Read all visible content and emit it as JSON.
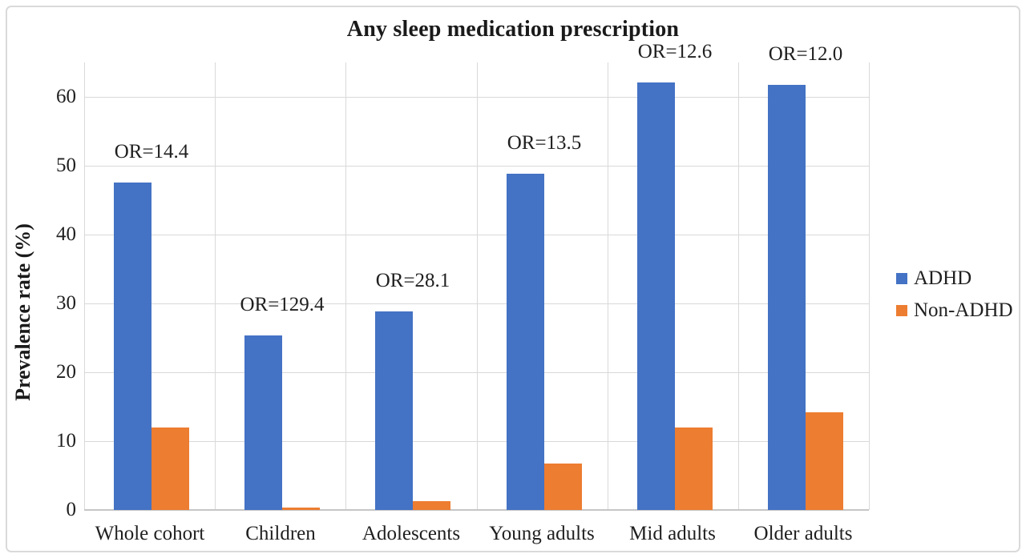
{
  "figure": {
    "background": "#ffffff",
    "border_color": "#dadada"
  },
  "chart_data": {
    "type": "bar",
    "title": "Any sleep medication prescription",
    "ylabel": "Prevalence rate (%)",
    "xlabel": "",
    "ylim": [
      0,
      65
    ],
    "yticks": [
      0,
      10,
      20,
      30,
      40,
      50,
      60
    ],
    "grid": true,
    "legend_position": "right",
    "categories": [
      "Whole cohort",
      "Children",
      "Adolescents",
      "Young adults",
      "Mid adults",
      "Older adults"
    ],
    "series": [
      {
        "name": "ADHD",
        "color": "#4472C4",
        "values": [
          47.5,
          25.4,
          28.8,
          48.8,
          62.1,
          61.8
        ]
      },
      {
        "name": "Non-ADHD",
        "color": "#ED7D31",
        "values": [
          12.0,
          0.3,
          1.3,
          6.8,
          12.0,
          14.2
        ]
      }
    ],
    "annotations": [
      {
        "category": "Whole cohort",
        "label": "OR=14.4"
      },
      {
        "category": "Children",
        "label": "OR=129.4"
      },
      {
        "category": "Adolescents",
        "label": "OR=28.1"
      },
      {
        "category": "Young adults",
        "label": "OR=13.5"
      },
      {
        "category": "Mid adults",
        "label": "OR=12.6"
      },
      {
        "category": "Older adults",
        "label": "OR=12.0"
      }
    ],
    "colors": {
      "gridline": "#d9d9d9",
      "axis_line": "#c6c6c6",
      "text": "#1f1f1f"
    }
  }
}
